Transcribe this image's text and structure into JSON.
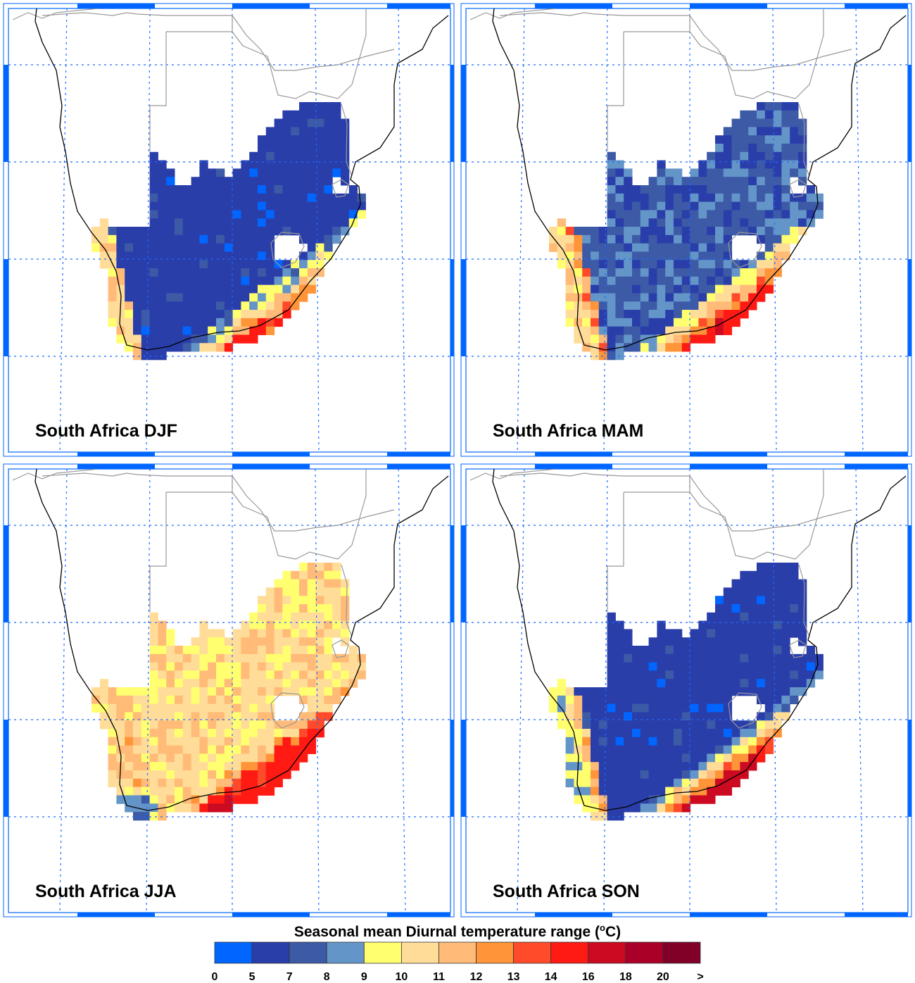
{
  "panels": [
    {
      "label": "South Africa DJF",
      "season": "DJF"
    },
    {
      "label": "South Africa MAM",
      "season": "MAM"
    },
    {
      "label": "South Africa JJA",
      "season": "JJA"
    },
    {
      "label": "South Africa SON",
      "season": "SON"
    }
  ],
  "colorbar": {
    "title": "Seasonal mean Diurnal temperature range (",
    "title_unit_sup": "o",
    "title_unit": "C)",
    "levels": [
      "0",
      "5",
      "7",
      "8",
      "9",
      "10",
      "11",
      "12",
      "13",
      "14",
      "16",
      "18",
      "20",
      ">"
    ],
    "colors": [
      "#0066ff",
      "#2a3eaa",
      "#3d5aa6",
      "#6495c8",
      "#ffff70",
      "#ffdd99",
      "#ffbb77",
      "#ff9438",
      "#ff4b2a",
      "#ff1a14",
      "#cc0a22",
      "#aa0028",
      "#800028"
    ]
  },
  "colors": {
    "grid": "#1e6bff",
    "frame": "#0066ff",
    "coast": "#000000",
    "border": "#999999"
  }
}
